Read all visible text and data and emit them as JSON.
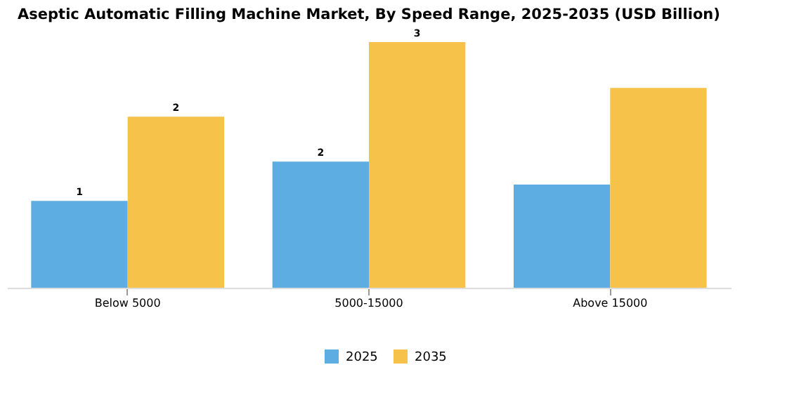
{
  "chart_data": {
    "type": "bar",
    "title": "Aseptic Automatic Filling Machine Market, By Speed Range, 2025-2035 (USD Billion)",
    "categories": [
      "Below 5000",
      "5000-15000",
      "Above 15000"
    ],
    "legend": "bottom",
    "grid": false,
    "series": [
      {
        "name": "2025",
        "color": "#5dade2",
        "values": [
          1.06,
          1.54,
          1.26
        ],
        "value_labels": [
          "1",
          "2",
          null
        ]
      },
      {
        "name": "2035",
        "color": "#f7c24a",
        "values": [
          2.09,
          3.0,
          2.44
        ],
        "value_labels": [
          "2",
          "3",
          null
        ]
      }
    ]
  }
}
